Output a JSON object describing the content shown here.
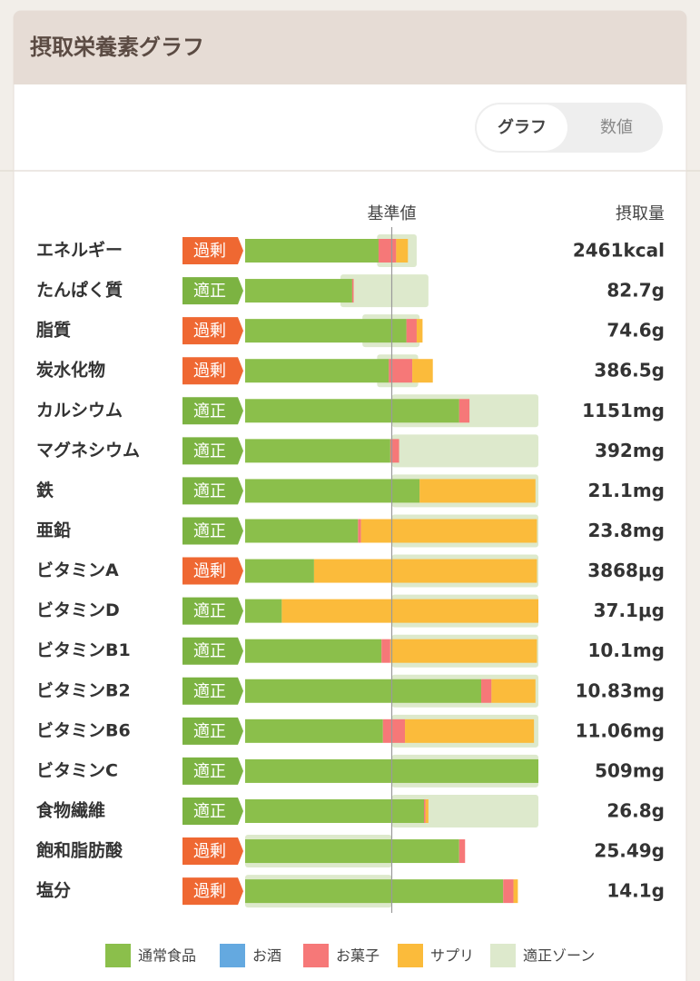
{
  "header": {
    "title": "摂取栄養素グラフ"
  },
  "toggle": {
    "options": [
      "グラフ",
      "数値"
    ],
    "selected": 0
  },
  "chart_data": {
    "type": "bar",
    "orientation": "horizontal",
    "stacked": true,
    "reference_label": "基準値",
    "reference_value": 100,
    "amount_header": "摂取量",
    "xlim": [
      0,
      200
    ],
    "categories": [
      "エネルギー",
      "たんぱく質",
      "脂質",
      "炭水化物",
      "カルシウム",
      "マグネシウム",
      "鉄",
      "亜鉛",
      "ビタミンA",
      "ビタミンD",
      "ビタミンB1",
      "ビタミンB2",
      "ビタミンB6",
      "ビタミンC",
      "食物繊維",
      "飽和脂肪酸",
      "塩分"
    ],
    "badges": [
      "過剰",
      "適正",
      "過剰",
      "過剰",
      "適正",
      "適正",
      "適正",
      "適正",
      "過剰",
      "適正",
      "適正",
      "適正",
      "適正",
      "適正",
      "適正",
      "過剰",
      "過剰"
    ],
    "status_colors": {
      "過剰": "#ef6832",
      "適正": "#7cb342"
    },
    "amounts": [
      "2461kcal",
      "82.7g",
      "74.6g",
      "386.5g",
      "1151mg",
      "392mg",
      "21.1mg",
      "23.8mg",
      "3868μg",
      "37.1μg",
      "10.1mg",
      "10.83mg",
      "11.06mg",
      "509mg",
      "26.8g",
      "25.49g",
      "14.1g"
    ],
    "series": [
      {
        "name": "通常食品",
        "color": "#8bbf4b",
        "values": [
          91,
          73,
          110,
          98,
          146,
          99,
          119,
          77,
          47,
          25,
          93,
          161,
          94,
          200,
          122,
          146,
          176
        ]
      },
      {
        "name": "お酒",
        "color": "#64a9e0",
        "values": [
          0,
          0,
          0,
          0,
          0,
          0,
          0,
          0,
          0,
          0,
          0,
          0,
          0,
          0,
          0,
          0,
          0
        ]
      },
      {
        "name": "お菓子",
        "color": "#f67878",
        "values": [
          12,
          1,
          7,
          16,
          7,
          6,
          0,
          2,
          0,
          0,
          6,
          7,
          15,
          0,
          1,
          4,
          7
        ]
      },
      {
        "name": "サプリ",
        "color": "#fbbb3b",
        "values": [
          8,
          0,
          4,
          14,
          0,
          0,
          79,
          120,
          152,
          175,
          100,
          30,
          88,
          0,
          2,
          0,
          3
        ]
      }
    ],
    "zone": {
      "name": "適正ゾーン",
      "color": "#dde9cc",
      "ranges": [
        [
          90,
          117
        ],
        [
          65,
          125
        ],
        [
          80,
          119
        ],
        [
          90,
          118
        ],
        [
          100,
          200
        ],
        [
          100,
          200
        ],
        [
          100,
          200
        ],
        [
          100,
          200
        ],
        [
          100,
          200
        ],
        [
          100,
          200
        ],
        [
          100,
          200
        ],
        [
          100,
          200
        ],
        [
          100,
          200
        ],
        [
          100,
          200
        ],
        [
          100,
          200
        ],
        [
          0,
          100
        ],
        [
          0,
          100
        ]
      ]
    }
  }
}
